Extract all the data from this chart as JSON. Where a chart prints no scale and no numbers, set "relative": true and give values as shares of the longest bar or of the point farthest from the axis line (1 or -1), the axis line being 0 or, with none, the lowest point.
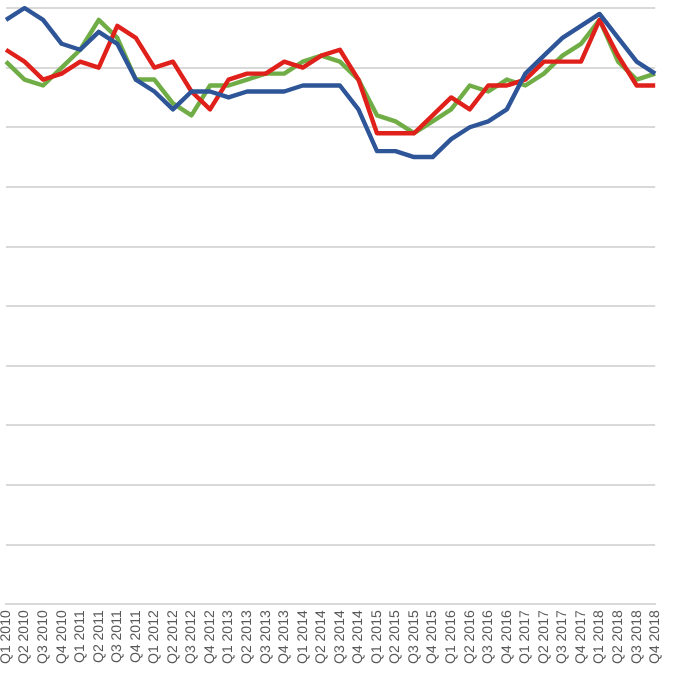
{
  "chart_data": {
    "type": "line",
    "relative": true,
    "grid": "y",
    "legend": false,
    "marker": "none",
    "line_style": "solid",
    "categories": [
      "Q1 2010",
      "Q2 2010",
      "Q3 2010",
      "Q4 2010",
      "Q1 2011",
      "Q2 2011",
      "Q3 2011",
      "Q4 2011",
      "Q1 2012",
      "Q2 2012",
      "Q3 2012",
      "Q4 2012",
      "Q1 2013",
      "Q2 2013",
      "Q3 2013",
      "Q4 2013",
      "Q1 2014",
      "Q2 2014",
      "Q3 2014",
      "Q4 2014",
      "Q1 2015",
      "Q2 2015",
      "Q3 2015",
      "Q4 2015",
      "Q1 2016",
      "Q2 2016",
      "Q3 2016",
      "Q4 2016",
      "Q1 2017",
      "Q2 2017",
      "Q3 2017",
      "Q4 2017",
      "Q1 2018",
      "Q2 2018",
      "Q3 2018",
      "Q4 2018"
    ],
    "series": [
      {
        "color": "#2e5597",
        "values": [
          0.98,
          1.0,
          0.98,
          0.94,
          0.93,
          0.96,
          0.94,
          0.88,
          0.86,
          0.83,
          0.86,
          0.86,
          0.85,
          0.86,
          0.86,
          0.86,
          0.87,
          0.87,
          0.87,
          0.83,
          0.76,
          0.76,
          0.75,
          0.75,
          0.78,
          0.8,
          0.81,
          0.83,
          0.89,
          0.92,
          0.95,
          0.97,
          0.99,
          0.95,
          0.91,
          0.89
        ]
      },
      {
        "color": "#e0201b",
        "values": [
          0.93,
          0.91,
          0.88,
          0.89,
          0.91,
          0.9,
          0.97,
          0.95,
          0.9,
          0.91,
          0.86,
          0.83,
          0.88,
          0.89,
          0.89,
          0.91,
          0.9,
          0.92,
          0.93,
          0.88,
          0.79,
          0.79,
          0.79,
          0.82,
          0.85,
          0.83,
          0.87,
          0.87,
          0.88,
          0.91,
          0.91,
          0.91,
          0.98,
          0.92,
          0.87,
          0.87
        ]
      },
      {
        "color": "#70ad47",
        "values": [
          0.91,
          0.88,
          0.87,
          0.9,
          0.93,
          0.98,
          0.95,
          0.88,
          0.88,
          0.84,
          0.82,
          0.87,
          0.87,
          0.88,
          0.89,
          0.89,
          0.91,
          0.92,
          0.91,
          0.88,
          0.82,
          0.81,
          0.79,
          0.81,
          0.83,
          0.87,
          0.86,
          0.88,
          0.87,
          0.89,
          0.92,
          0.94,
          0.98,
          0.91,
          0.88,
          0.89
        ]
      }
    ]
  }
}
